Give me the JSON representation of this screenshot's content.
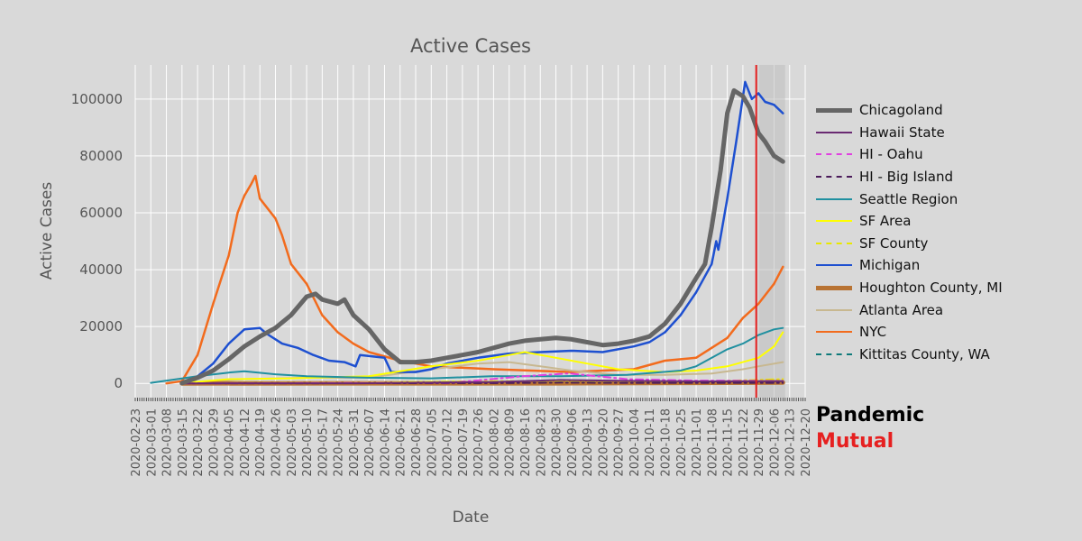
{
  "brand": {
    "line1": "Pandemic",
    "line2": "Mutual",
    "color1": "#000000",
    "color2": "#e62020"
  },
  "chart_data": {
    "type": "line",
    "title": "Active Cases",
    "xlabel": "Date",
    "ylabel": "Active Cases",
    "ylim": [
      -5000,
      112000
    ],
    "yticks": [
      0,
      20000,
      40000,
      60000,
      80000,
      100000
    ],
    "xlim": [
      "2020-02-23",
      "2020-12-20"
    ],
    "xticks": [
      "2020-02-23",
      "2020-03-01",
      "2020-03-08",
      "2020-03-15",
      "2020-03-22",
      "2020-03-29",
      "2020-04-05",
      "2020-04-12",
      "2020-04-19",
      "2020-04-26",
      "2020-05-03",
      "2020-05-10",
      "2020-05-17",
      "2020-05-24",
      "2020-05-31",
      "2020-06-07",
      "2020-06-14",
      "2020-06-21",
      "2020-06-28",
      "2020-07-05",
      "2020-07-12",
      "2020-07-19",
      "2020-07-26",
      "2020-08-02",
      "2020-08-09",
      "2020-08-16",
      "2020-08-23",
      "2020-08-30",
      "2020-09-06",
      "2020-09-13",
      "2020-09-20",
      "2020-09-27",
      "2020-10-04",
      "2020-10-11",
      "2020-10-18",
      "2020-10-25",
      "2020-11-01",
      "2020-11-08",
      "2020-11-15",
      "2020-11-22",
      "2020-11-29",
      "2020-12-06",
      "2020-12-13",
      "2020-12-20"
    ],
    "grid": true,
    "legend_position": "right",
    "marker_line": {
      "date": "2020-11-28",
      "color": "#e62020"
    },
    "series": [
      {
        "name": "Chicagoland",
        "color": "#666666",
        "width": 5,
        "dash": "",
        "points": [
          [
            "2020-03-15",
            100
          ],
          [
            "2020-03-22",
            2000
          ],
          [
            "2020-03-29",
            4500
          ],
          [
            "2020-04-05",
            8500
          ],
          [
            "2020-04-12",
            13000
          ],
          [
            "2020-04-19",
            16500
          ],
          [
            "2020-04-26",
            19500
          ],
          [
            "2020-05-03",
            24000
          ],
          [
            "2020-05-10",
            30500
          ],
          [
            "2020-05-14",
            31500
          ],
          [
            "2020-05-17",
            29500
          ],
          [
            "2020-05-24",
            28000
          ],
          [
            "2020-05-27",
            29500
          ],
          [
            "2020-05-31",
            24000
          ],
          [
            "2020-06-07",
            19000
          ],
          [
            "2020-06-14",
            12000
          ],
          [
            "2020-06-21",
            7500
          ],
          [
            "2020-06-28",
            7500
          ],
          [
            "2020-07-05",
            8000
          ],
          [
            "2020-07-12",
            9000
          ],
          [
            "2020-07-19",
            10000
          ],
          [
            "2020-07-26",
            11000
          ],
          [
            "2020-08-02",
            12500
          ],
          [
            "2020-08-09",
            14000
          ],
          [
            "2020-08-16",
            15000
          ],
          [
            "2020-08-23",
            15500
          ],
          [
            "2020-08-30",
            16000
          ],
          [
            "2020-09-06",
            15500
          ],
          [
            "2020-09-13",
            14500
          ],
          [
            "2020-09-20",
            13500
          ],
          [
            "2020-09-27",
            14000
          ],
          [
            "2020-10-04",
            15000
          ],
          [
            "2020-10-11",
            16500
          ],
          [
            "2020-10-18",
            21000
          ],
          [
            "2020-10-25",
            28000
          ],
          [
            "2020-11-01",
            37000
          ],
          [
            "2020-11-05",
            42000
          ],
          [
            "2020-11-08",
            55000
          ],
          [
            "2020-11-12",
            75000
          ],
          [
            "2020-11-15",
            95000
          ],
          [
            "2020-11-18",
            103000
          ],
          [
            "2020-11-22",
            101000
          ],
          [
            "2020-11-25",
            97000
          ],
          [
            "2020-11-29",
            88000
          ],
          [
            "2020-12-02",
            85000
          ],
          [
            "2020-12-06",
            80000
          ],
          [
            "2020-12-10",
            78000
          ]
        ]
      },
      {
        "name": "Hawaii State",
        "color": "#6a2a72",
        "width": 2,
        "dash": "",
        "points": [
          [
            "2020-03-15",
            0
          ],
          [
            "2020-06-01",
            50
          ],
          [
            "2020-08-01",
            500
          ],
          [
            "2020-09-01",
            1200
          ],
          [
            "2020-10-01",
            900
          ],
          [
            "2020-11-01",
            700
          ],
          [
            "2020-12-10",
            800
          ]
        ]
      },
      {
        "name": "HI - Oahu",
        "color": "#e040e0",
        "width": 2,
        "dash": "8,4,2,4",
        "points": [
          [
            "2020-03-15",
            0
          ],
          [
            "2020-07-15",
            300
          ],
          [
            "2020-08-15",
            2500
          ],
          [
            "2020-09-05",
            3500
          ],
          [
            "2020-10-01",
            1500
          ],
          [
            "2020-11-01",
            1000
          ],
          [
            "2020-12-10",
            900
          ]
        ]
      },
      {
        "name": "HI - Big Island",
        "color": "#4a1a5a",
        "width": 2,
        "dash": "8,4,2,4",
        "points": [
          [
            "2020-03-15",
            0
          ],
          [
            "2020-08-01",
            100
          ],
          [
            "2020-09-01",
            300
          ],
          [
            "2020-10-01",
            200
          ],
          [
            "2020-12-10",
            200
          ]
        ]
      },
      {
        "name": "Seattle Region",
        "color": "#2090a0",
        "width": 2,
        "dash": "",
        "points": [
          [
            "2020-03-01",
            200
          ],
          [
            "2020-03-22",
            2500
          ],
          [
            "2020-04-05",
            3800
          ],
          [
            "2020-04-12",
            4300
          ],
          [
            "2020-04-26",
            3200
          ],
          [
            "2020-05-10",
            2500
          ],
          [
            "2020-06-07",
            2000
          ],
          [
            "2020-07-05",
            1800
          ],
          [
            "2020-08-01",
            2500
          ],
          [
            "2020-09-01",
            2500
          ],
          [
            "2020-10-01",
            3000
          ],
          [
            "2020-10-25",
            4500
          ],
          [
            "2020-11-01",
            6000
          ],
          [
            "2020-11-15",
            12000
          ],
          [
            "2020-11-22",
            14000
          ],
          [
            "2020-11-29",
            17000
          ],
          [
            "2020-12-06",
            19000
          ],
          [
            "2020-12-10",
            19500
          ]
        ]
      },
      {
        "name": "SF Area",
        "color": "#ffff00",
        "width": 2,
        "dash": "",
        "points": [
          [
            "2020-03-15",
            100
          ],
          [
            "2020-04-05",
            1500
          ],
          [
            "2020-05-03",
            1800
          ],
          [
            "2020-06-07",
            2500
          ],
          [
            "2020-07-05",
            6000
          ],
          [
            "2020-07-26",
            8000
          ],
          [
            "2020-08-09",
            10000
          ],
          [
            "2020-08-16",
            11000
          ],
          [
            "2020-08-30",
            9000
          ],
          [
            "2020-09-13",
            7000
          ],
          [
            "2020-09-27",
            5000
          ],
          [
            "2020-10-18",
            4000
          ],
          [
            "2020-11-01",
            4500
          ],
          [
            "2020-11-15",
            6000
          ],
          [
            "2020-11-29",
            9000
          ],
          [
            "2020-12-06",
            13000
          ],
          [
            "2020-12-10",
            18000
          ]
        ]
      },
      {
        "name": "SF County",
        "color": "#e8e800",
        "width": 2,
        "dash": "8,4,2,4",
        "points": [
          [
            "2020-03-15",
            0
          ],
          [
            "2020-06-01",
            300
          ],
          [
            "2020-08-01",
            800
          ],
          [
            "2020-09-01",
            700
          ],
          [
            "2020-10-01",
            500
          ],
          [
            "2020-11-01",
            600
          ],
          [
            "2020-12-10",
            1500
          ]
        ]
      },
      {
        "name": "Michigan",
        "color": "#1e50d0",
        "width": 2.5,
        "dash": "",
        "points": [
          [
            "2020-03-15",
            300
          ],
          [
            "2020-03-22",
            2500
          ],
          [
            "2020-03-29",
            7000
          ],
          [
            "2020-04-05",
            14000
          ],
          [
            "2020-04-12",
            19000
          ],
          [
            "2020-04-19",
            19500
          ],
          [
            "2020-04-22",
            17500
          ],
          [
            "2020-04-29",
            14000
          ],
          [
            "2020-05-06",
            12500
          ],
          [
            "2020-05-13",
            10000
          ],
          [
            "2020-05-20",
            8000
          ],
          [
            "2020-05-27",
            7500
          ],
          [
            "2020-06-01",
            6000
          ],
          [
            "2020-06-03",
            10000
          ],
          [
            "2020-06-14",
            9000
          ],
          [
            "2020-06-17",
            4000
          ],
          [
            "2020-06-28",
            4000
          ],
          [
            "2020-07-05",
            5000
          ],
          [
            "2020-07-12",
            7000
          ],
          [
            "2020-07-26",
            9000
          ],
          [
            "2020-08-09",
            10500
          ],
          [
            "2020-08-23",
            11000
          ],
          [
            "2020-09-06",
            11500
          ],
          [
            "2020-09-20",
            11000
          ],
          [
            "2020-10-04",
            13000
          ],
          [
            "2020-10-11",
            14500
          ],
          [
            "2020-10-18",
            18000
          ],
          [
            "2020-10-25",
            24000
          ],
          [
            "2020-11-01",
            32000
          ],
          [
            "2020-11-08",
            42000
          ],
          [
            "2020-11-10",
            50000
          ],
          [
            "2020-11-11",
            47000
          ],
          [
            "2020-11-15",
            65000
          ],
          [
            "2020-11-19",
            85000
          ],
          [
            "2020-11-23",
            106000
          ],
          [
            "2020-11-26",
            100000
          ],
          [
            "2020-11-29",
            102000
          ],
          [
            "2020-12-02",
            99000
          ],
          [
            "2020-12-06",
            98000
          ],
          [
            "2020-12-10",
            95000
          ]
        ]
      },
      {
        "name": "Houghton County, MI",
        "color": "#b87333",
        "width": 5,
        "dash": "",
        "points": [
          [
            "2020-03-15",
            0
          ],
          [
            "2020-09-01",
            50
          ],
          [
            "2020-11-01",
            200
          ],
          [
            "2020-12-10",
            300
          ]
        ]
      },
      {
        "name": "Atlanta Area",
        "color": "#c8b890",
        "width": 2,
        "dash": "",
        "points": [
          [
            "2020-03-15",
            100
          ],
          [
            "2020-04-12",
            1500
          ],
          [
            "2020-05-10",
            2000
          ],
          [
            "2020-06-07",
            2000
          ],
          [
            "2020-07-05",
            5000
          ],
          [
            "2020-07-26",
            7000
          ],
          [
            "2020-08-09",
            7500
          ],
          [
            "2020-08-23",
            6000
          ],
          [
            "2020-09-06",
            4500
          ],
          [
            "2020-09-27",
            3000
          ],
          [
            "2020-10-18",
            3000
          ],
          [
            "2020-11-08",
            3500
          ],
          [
            "2020-11-22",
            5000
          ],
          [
            "2020-11-29",
            6000
          ],
          [
            "2020-12-10",
            7500
          ]
        ]
      },
      {
        "name": "NYC",
        "color": "#f26b1d",
        "width": 2.5,
        "dash": "",
        "points": [
          [
            "2020-03-08",
            0
          ],
          [
            "2020-03-15",
            800
          ],
          [
            "2020-03-22",
            10000
          ],
          [
            "2020-03-29",
            28000
          ],
          [
            "2020-04-05",
            45000
          ],
          [
            "2020-04-09",
            60000
          ],
          [
            "2020-04-12",
            66000
          ],
          [
            "2020-04-15",
            70000
          ],
          [
            "2020-04-17",
            73000
          ],
          [
            "2020-04-19",
            65000
          ],
          [
            "2020-04-26",
            58000
          ],
          [
            "2020-04-29",
            52000
          ],
          [
            "2020-05-03",
            42000
          ],
          [
            "2020-05-10",
            35000
          ],
          [
            "2020-05-17",
            24000
          ],
          [
            "2020-05-24",
            18000
          ],
          [
            "2020-05-31",
            14000
          ],
          [
            "2020-06-07",
            11000
          ],
          [
            "2020-06-21",
            8000
          ],
          [
            "2020-07-05",
            6000
          ],
          [
            "2020-08-02",
            5000
          ],
          [
            "2020-09-06",
            4000
          ],
          [
            "2020-10-04",
            5000
          ],
          [
            "2020-10-18",
            8000
          ],
          [
            "2020-11-01",
            9000
          ],
          [
            "2020-11-15",
            16000
          ],
          [
            "2020-11-22",
            23000
          ],
          [
            "2020-11-29",
            28000
          ],
          [
            "2020-12-06",
            35000
          ],
          [
            "2020-12-10",
            41000
          ]
        ]
      },
      {
        "name": "Kittitas County, WA",
        "color": "#0f7a7a",
        "width": 2,
        "dash": "8,4,2,4",
        "points": [
          [
            "2020-03-15",
            0
          ],
          [
            "2020-08-01",
            20
          ],
          [
            "2020-11-01",
            50
          ],
          [
            "2020-12-10",
            150
          ]
        ]
      }
    ]
  }
}
